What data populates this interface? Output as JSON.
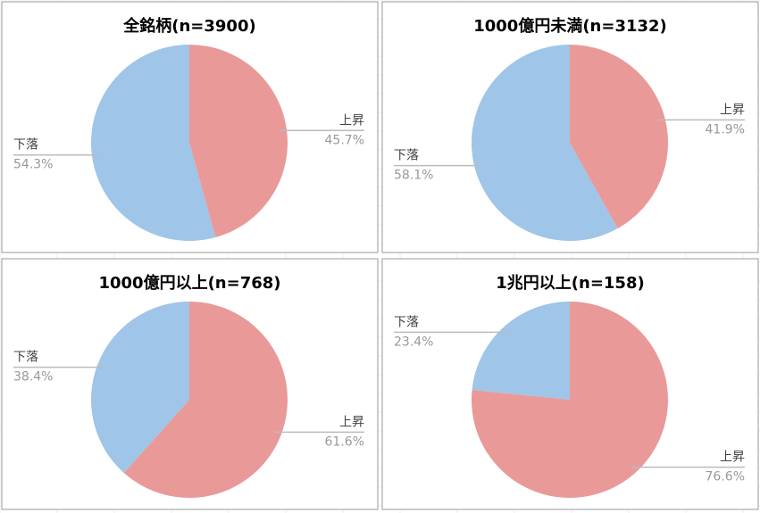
{
  "chart_data": [
    {
      "type": "pie",
      "title": "全銘柄(n=3900)",
      "categories": [
        "上昇",
        "下落"
      ],
      "values": [
        45.7,
        54.3
      ],
      "value_labels": [
        "45.7%",
        "54.3%"
      ],
      "colors": [
        "#ea9999",
        "#9fc5e8"
      ]
    },
    {
      "type": "pie",
      "title": "1000億円未満(n=3132)",
      "categories": [
        "上昇",
        "下落"
      ],
      "values": [
        41.9,
        58.1
      ],
      "value_labels": [
        "41.9%",
        "58.1%"
      ],
      "colors": [
        "#ea9999",
        "#9fc5e8"
      ]
    },
    {
      "type": "pie",
      "title": "1000億円以上(n=768)",
      "categories": [
        "上昇",
        "下落"
      ],
      "values": [
        61.6,
        38.4
      ],
      "value_labels": [
        "61.6%",
        "38.4%"
      ],
      "colors": [
        "#ea9999",
        "#9fc5e8"
      ]
    },
    {
      "type": "pie",
      "title": "1兆円以上(n=158)",
      "categories": [
        "上昇",
        "下落"
      ],
      "values": [
        76.6,
        23.4
      ],
      "value_labels": [
        "76.6%",
        "23.4%"
      ],
      "colors": [
        "#ea9999",
        "#9fc5e8"
      ]
    }
  ]
}
